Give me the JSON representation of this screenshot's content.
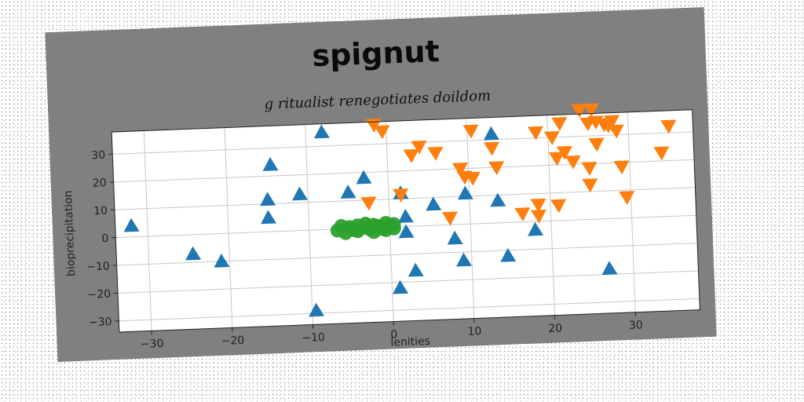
{
  "chart_data": {
    "type": "scatter",
    "title": "spignut",
    "subtitle": "g ritualist renegotiates doildom",
    "xlabel": "lenities",
    "ylabel": "bioprecipitation",
    "xlim": [
      -34,
      38
    ],
    "ylim": [
      -34,
      38
    ],
    "xticks": [
      -30,
      -20,
      -10,
      0,
      10,
      20,
      30
    ],
    "yticks": [
      -30,
      -20,
      -10,
      0,
      10,
      20,
      30
    ],
    "grid": true,
    "colors": {
      "figure_bg": "#808080",
      "plot_bg": "#ffffff",
      "grid": "#c8c8c8"
    },
    "series": [
      {
        "marker": "triangle-up",
        "color": "#1f77b4",
        "points": [
          [
            -32,
            4
          ],
          [
            -24.5,
            -7
          ],
          [
            -21,
            -10
          ],
          [
            -15,
            5
          ],
          [
            -15,
            11.5
          ],
          [
            -14.5,
            24
          ],
          [
            -11,
            13
          ],
          [
            -8,
            35
          ],
          [
            -9.5,
            -29
          ],
          [
            -5,
            13
          ],
          [
            -3,
            18
          ],
          [
            1.5,
            12
          ],
          [
            2,
            -2
          ],
          [
            2,
            3.5
          ],
          [
            1,
            -22
          ],
          [
            3,
            -16
          ],
          [
            5.5,
            7.5
          ],
          [
            8,
            -5
          ],
          [
            9,
            -13
          ],
          [
            9.5,
            11
          ],
          [
            13,
            32
          ],
          [
            13.5,
            8
          ],
          [
            14.5,
            -12
          ],
          [
            18,
            -3
          ],
          [
            27,
            -18
          ]
        ]
      },
      {
        "marker": "triangle-down",
        "color": "#ff7f0e",
        "points": [
          [
            -2.5,
            9
          ],
          [
            -1.5,
            37
          ],
          [
            -0.5,
            34.5
          ],
          [
            1.5,
            11.5
          ],
          [
            3,
            25.5
          ],
          [
            4,
            28.5
          ],
          [
            6,
            26
          ],
          [
            7.5,
            2.5
          ],
          [
            9,
            20
          ],
          [
            9.5,
            17
          ],
          [
            10.5,
            16.5
          ],
          [
            10.5,
            33.5
          ],
          [
            13,
            27
          ],
          [
            13.5,
            20
          ],
          [
            16.5,
            3
          ],
          [
            18.5,
            32
          ],
          [
            18.5,
            6
          ],
          [
            18.5,
            2
          ],
          [
            20.5,
            30
          ],
          [
            21,
            22.5
          ],
          [
            21,
            5.5
          ],
          [
            21.5,
            35
          ],
          [
            22,
            24.5
          ],
          [
            23,
            21
          ],
          [
            24,
            39.5
          ],
          [
            25,
            34.5
          ],
          [
            25,
            18.5
          ],
          [
            25,
            12.5
          ],
          [
            25.5,
            39.5
          ],
          [
            26,
            35
          ],
          [
            26,
            27
          ],
          [
            27,
            34
          ],
          [
            27.5,
            33.5
          ],
          [
            28,
            35
          ],
          [
            28.5,
            31.5
          ],
          [
            29,
            18.5
          ],
          [
            29.5,
            7.5
          ],
          [
            34,
            23
          ],
          [
            35,
            32.5
          ]
        ]
      },
      {
        "marker": "circle",
        "color": "#2ca02c",
        "points": [
          [
            -6.5,
            -0.5
          ],
          [
            -6,
            1
          ],
          [
            -5.5,
            -1.5
          ],
          [
            -5,
            0.5
          ],
          [
            -4.5,
            -0.5
          ],
          [
            -4,
            1
          ],
          [
            -4,
            -1
          ],
          [
            -3.5,
            0
          ],
          [
            -3,
            1.5
          ],
          [
            -2.5,
            -0.5
          ],
          [
            -2,
            1
          ],
          [
            -2,
            -1.5
          ],
          [
            -1.5,
            0.5
          ],
          [
            -1,
            -0.5
          ],
          [
            -0.5,
            1.5
          ],
          [
            -0.5,
            -1
          ],
          [
            0,
            0.5
          ],
          [
            0.5,
            -0.5
          ],
          [
            0.5,
            1
          ]
        ]
      }
    ]
  }
}
